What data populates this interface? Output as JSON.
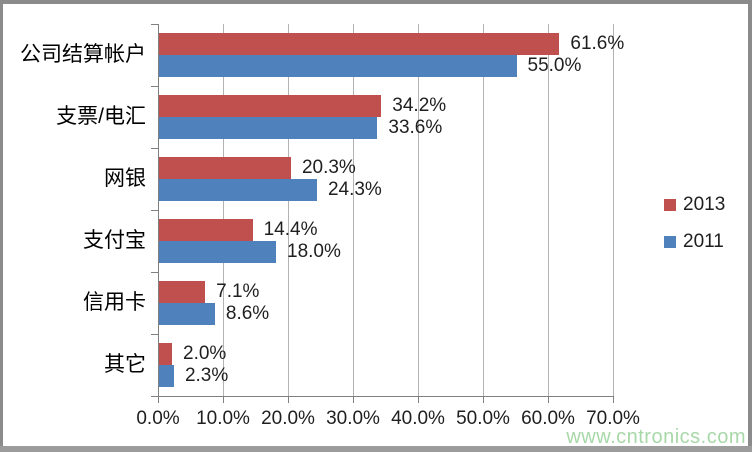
{
  "watermark": "www.cntronics.com",
  "colors": {
    "series_2013": "#C0504D",
    "series_2011": "#4F81BD",
    "gridline": "#b3b3b3",
    "axis": "#808080",
    "text": "#1f1f1f",
    "watermark": "#a8d8a8",
    "frame": "#8b8b8b",
    "frame_bottom": "#9c9c9c"
  },
  "chart_data": {
    "type": "bar",
    "orientation": "horizontal",
    "title": "",
    "categories": [
      "公司结算帐户",
      "支票/电汇",
      "网银",
      "支付宝",
      "信用卡",
      "其它"
    ],
    "series": [
      {
        "name": "2013",
        "color": "#C0504D",
        "values": [
          61.6,
          34.2,
          20.3,
          14.4,
          7.1,
          2.0
        ],
        "data_labels": [
          "61.6%",
          "34.2%",
          "20.3%",
          "14.4%",
          "7.1%",
          "2.0%"
        ]
      },
      {
        "name": "2011",
        "color": "#4F81BD",
        "values": [
          55.0,
          33.6,
          24.3,
          18.0,
          8.6,
          2.3
        ],
        "data_labels": [
          "55.0%",
          "33.6%",
          "24.3%",
          "18.0%",
          "8.6%",
          "2.3%"
        ]
      }
    ],
    "x_axis": {
      "min": 0,
      "max": 70,
      "step": 10,
      "tick_labels": [
        "0.0%",
        "10.0%",
        "20.0%",
        "30.0%",
        "40.0%",
        "50.0%",
        "60.0%",
        "70.0%"
      ]
    },
    "legend": {
      "position": "right",
      "entries": [
        {
          "label": "2013",
          "color": "#C0504D"
        },
        {
          "label": "2011",
          "color": "#4F81BD"
        }
      ]
    },
    "grid": true
  }
}
